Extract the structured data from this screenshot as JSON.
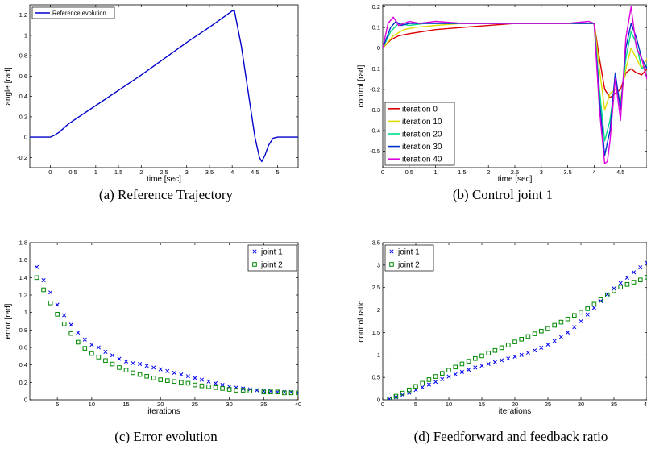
{
  "chart_data": [
    {
      "id": "a",
      "type": "line",
      "caption": "(a) Reference Trajectory",
      "xlabel": "time [sec]",
      "ylabel": "angle [rad]",
      "xlim": [
        -0.45,
        5.45
      ],
      "ylim": [
        -0.3,
        1.3
      ],
      "xticks": [
        0,
        0.5,
        1,
        1.5,
        2,
        2.5,
        3,
        3.5,
        4,
        4.5,
        5
      ],
      "yticks": [
        -0.2,
        0,
        0.2,
        0.4,
        0.6,
        0.8,
        1,
        1.2
      ],
      "legend_position": "top-left",
      "series": [
        {
          "name": "Reference evolution",
          "color": "#0000cc",
          "x": [
            -0.45,
            0.0,
            0.1,
            0.2,
            0.3,
            0.4,
            0.5,
            1.0,
            1.5,
            2.0,
            2.5,
            3.0,
            3.5,
            4.0,
            4.05,
            4.2,
            4.35,
            4.5,
            4.6,
            4.65,
            4.72,
            4.8,
            4.9,
            5.0,
            5.45
          ],
          "y": [
            0.0,
            0.0,
            0.02,
            0.05,
            0.09,
            0.13,
            0.16,
            0.31,
            0.46,
            0.61,
            0.77,
            0.93,
            1.08,
            1.24,
            1.24,
            0.9,
            0.45,
            0.0,
            -0.2,
            -0.24,
            -0.18,
            -0.08,
            -0.01,
            0.0,
            0.0
          ]
        }
      ]
    },
    {
      "id": "b",
      "type": "line",
      "caption": "(b) Control joint 1",
      "xlabel": "time [sec]",
      "ylabel": "control [rad]",
      "xlim": [
        0,
        5
      ],
      "ylim": [
        -0.58,
        0.21
      ],
      "xticks": [
        0,
        0.5,
        1,
        1.5,
        2,
        2.5,
        3,
        3.5,
        4,
        4.5
      ],
      "yticks": [
        -0.5,
        -0.4,
        -0.3,
        -0.2,
        -0.1,
        0,
        0.1,
        0.2
      ],
      "legend_position": "bottom-left",
      "series": [
        {
          "name": "iteration 0",
          "color": "#dd0000",
          "x": [
            0,
            0.15,
            0.3,
            0.5,
            1.0,
            1.5,
            2.0,
            2.5,
            3.0,
            3.5,
            3.9,
            4.0,
            4.1,
            4.2,
            4.3,
            4.4,
            4.5,
            4.6,
            4.7,
            4.8,
            4.9,
            5.0
          ],
          "y": [
            0.0,
            0.04,
            0.06,
            0.07,
            0.09,
            0.1,
            0.11,
            0.12,
            0.12,
            0.12,
            0.12,
            0.12,
            -0.05,
            -0.2,
            -0.24,
            -0.22,
            -0.2,
            -0.12,
            -0.1,
            -0.12,
            -0.13,
            -0.1
          ]
        },
        {
          "name": "iteration 10",
          "color": "#dddd00",
          "x": [
            0,
            0.2,
            0.4,
            0.6,
            1.0,
            1.5,
            2.0,
            2.5,
            3.0,
            3.5,
            3.9,
            4.0,
            4.1,
            4.2,
            4.3,
            4.4,
            4.5,
            4.6,
            4.7,
            4.8,
            4.9,
            5.0
          ],
          "y": [
            0.0,
            0.06,
            0.09,
            0.1,
            0.11,
            0.12,
            0.12,
            0.12,
            0.12,
            0.12,
            0.12,
            0.12,
            -0.1,
            -0.3,
            -0.22,
            -0.2,
            -0.25,
            -0.1,
            0.0,
            -0.05,
            -0.1,
            -0.05
          ]
        },
        {
          "name": "iteration 20",
          "color": "#00dd88",
          "x": [
            0,
            0.15,
            0.3,
            0.5,
            0.8,
            1.0,
            1.5,
            2.0,
            2.5,
            3.0,
            3.5,
            3.9,
            4.0,
            4.1,
            4.2,
            4.3,
            4.4,
            4.5,
            4.6,
            4.7,
            4.8,
            4.9,
            5.0
          ],
          "y": [
            0.0,
            0.08,
            0.12,
            0.11,
            0.12,
            0.12,
            0.12,
            0.12,
            0.12,
            0.12,
            0.12,
            0.12,
            0.12,
            -0.2,
            -0.45,
            -0.35,
            -0.15,
            -0.28,
            -0.05,
            0.08,
            0.02,
            -0.1,
            -0.08
          ]
        },
        {
          "name": "iteration 30",
          "color": "#0033cc",
          "x": [
            0,
            0.15,
            0.25,
            0.35,
            0.5,
            0.7,
            1.0,
            1.5,
            2.0,
            2.5,
            3.0,
            3.5,
            3.9,
            4.0,
            4.1,
            4.2,
            4.3,
            4.4,
            4.5,
            4.6,
            4.7,
            4.8,
            4.9,
            5.0
          ],
          "y": [
            0.0,
            0.1,
            0.13,
            0.11,
            0.12,
            0.12,
            0.12,
            0.12,
            0.12,
            0.12,
            0.12,
            0.12,
            0.12,
            0.12,
            -0.25,
            -0.52,
            -0.4,
            -0.12,
            -0.3,
            0.0,
            0.12,
            0.05,
            -0.05,
            -0.1
          ]
        },
        {
          "name": "iteration 40",
          "color": "#dd00dd",
          "x": [
            0,
            0.1,
            0.2,
            0.3,
            0.4,
            0.5,
            0.7,
            1.0,
            1.5,
            2.0,
            2.5,
            3.0,
            3.5,
            3.9,
            4.0,
            4.1,
            4.2,
            4.25,
            4.3,
            4.4,
            4.5,
            4.6,
            4.7,
            4.8,
            4.9,
            5.0
          ],
          "y": [
            0.0,
            0.12,
            0.15,
            0.11,
            0.12,
            0.13,
            0.12,
            0.13,
            0.12,
            0.12,
            0.12,
            0.12,
            0.12,
            0.13,
            0.12,
            -0.3,
            -0.56,
            -0.55,
            -0.45,
            -0.15,
            -0.35,
            0.05,
            0.2,
            0.0,
            -0.05,
            -0.15
          ]
        }
      ]
    },
    {
      "id": "c",
      "type": "scatter",
      "caption": "(c) Error evolution",
      "xlabel": "iterations",
      "ylabel": "error [rad]",
      "xlim": [
        1,
        40
      ],
      "ylim": [
        0,
        1.8
      ],
      "xticks": [
        5,
        10,
        15,
        20,
        25,
        30,
        35,
        40
      ],
      "yticks": [
        0,
        0.2,
        0.4,
        0.6,
        0.8,
        1,
        1.2,
        1.4,
        1.6,
        1.8
      ],
      "legend_position": "top-right",
      "series": [
        {
          "name": "joint 1",
          "color": "#0000ee",
          "marker": "x",
          "x": [
            2,
            3,
            4,
            5,
            6,
            7,
            8,
            9,
            10,
            11,
            12,
            13,
            14,
            15,
            16,
            17,
            18,
            19,
            20,
            21,
            22,
            23,
            24,
            25,
            26,
            27,
            28,
            29,
            30,
            31,
            32,
            33,
            34,
            35,
            36,
            37,
            38,
            39,
            40
          ],
          "y": [
            1.52,
            1.37,
            1.23,
            1.09,
            0.97,
            0.86,
            0.77,
            0.69,
            0.63,
            0.6,
            0.55,
            0.51,
            0.47,
            0.44,
            0.42,
            0.41,
            0.39,
            0.37,
            0.35,
            0.33,
            0.31,
            0.29,
            0.27,
            0.25,
            0.23,
            0.21,
            0.19,
            0.17,
            0.15,
            0.14,
            0.13,
            0.12,
            0.11,
            0.1,
            0.1,
            0.09,
            0.09,
            0.09,
            0.08
          ]
        },
        {
          "name": "joint 2",
          "color": "#008800",
          "marker": "square",
          "x": [
            2,
            3,
            4,
            5,
            6,
            7,
            8,
            9,
            10,
            11,
            12,
            13,
            14,
            15,
            16,
            17,
            18,
            19,
            20,
            21,
            22,
            23,
            24,
            25,
            26,
            27,
            28,
            29,
            30,
            31,
            32,
            33,
            34,
            35,
            36,
            37,
            38,
            39,
            40
          ],
          "y": [
            1.4,
            1.26,
            1.11,
            0.98,
            0.87,
            0.76,
            0.66,
            0.59,
            0.53,
            0.49,
            0.45,
            0.41,
            0.37,
            0.34,
            0.31,
            0.29,
            0.27,
            0.25,
            0.23,
            0.22,
            0.21,
            0.2,
            0.19,
            0.17,
            0.16,
            0.15,
            0.14,
            0.13,
            0.12,
            0.11,
            0.11,
            0.1,
            0.1,
            0.09,
            0.09,
            0.09,
            0.08,
            0.08,
            0.08
          ]
        }
      ]
    },
    {
      "id": "d",
      "type": "scatter",
      "caption": "(d) Feedforward and feedback ratio",
      "xlabel": "iterations",
      "ylabel": "control ratio",
      "xlim": [
        0,
        40
      ],
      "ylim": [
        0,
        3.5
      ],
      "xticks": [
        0,
        5,
        10,
        15,
        20,
        25,
        30,
        35,
        40
      ],
      "yticks": [
        0,
        0.5,
        1,
        1.5,
        2,
        2.5,
        3,
        3.5
      ],
      "legend_position": "top-left",
      "series": [
        {
          "name": "joint 1",
          "color": "#0000ee",
          "marker": "x",
          "x": [
            1,
            2,
            3,
            4,
            5,
            6,
            7,
            8,
            9,
            10,
            11,
            12,
            13,
            14,
            15,
            16,
            17,
            18,
            19,
            20,
            21,
            22,
            23,
            24,
            25,
            26,
            27,
            28,
            29,
            30,
            31,
            32,
            33,
            34,
            35,
            36,
            37,
            38,
            39,
            40
          ],
          "y": [
            0.02,
            0.06,
            0.11,
            0.16,
            0.22,
            0.28,
            0.34,
            0.4,
            0.46,
            0.52,
            0.57,
            0.62,
            0.67,
            0.72,
            0.76,
            0.8,
            0.84,
            0.88,
            0.92,
            0.96,
            1.0,
            1.05,
            1.1,
            1.16,
            1.23,
            1.31,
            1.4,
            1.5,
            1.62,
            1.75,
            1.9,
            2.05,
            2.2,
            2.35,
            2.48,
            2.6,
            2.72,
            2.84,
            2.95,
            3.05
          ]
        },
        {
          "name": "joint 2",
          "color": "#008800",
          "marker": "square",
          "x": [
            1,
            2,
            3,
            4,
            5,
            6,
            7,
            8,
            9,
            10,
            11,
            12,
            13,
            14,
            15,
            16,
            17,
            18,
            19,
            20,
            21,
            22,
            23,
            24,
            25,
            26,
            27,
            28,
            29,
            30,
            31,
            32,
            33,
            34,
            35,
            36,
            37,
            38,
            39,
            40
          ],
          "y": [
            0.02,
            0.08,
            0.15,
            0.22,
            0.3,
            0.37,
            0.45,
            0.52,
            0.59,
            0.66,
            0.73,
            0.8,
            0.86,
            0.92,
            0.98,
            1.04,
            1.1,
            1.16,
            1.22,
            1.29,
            1.35,
            1.41,
            1.47,
            1.53,
            1.59,
            1.66,
            1.73,
            1.8,
            1.88,
            1.95,
            2.03,
            2.13,
            2.23,
            2.33,
            2.43,
            2.51,
            2.57,
            2.62,
            2.67,
            2.73
          ]
        }
      ]
    }
  ]
}
